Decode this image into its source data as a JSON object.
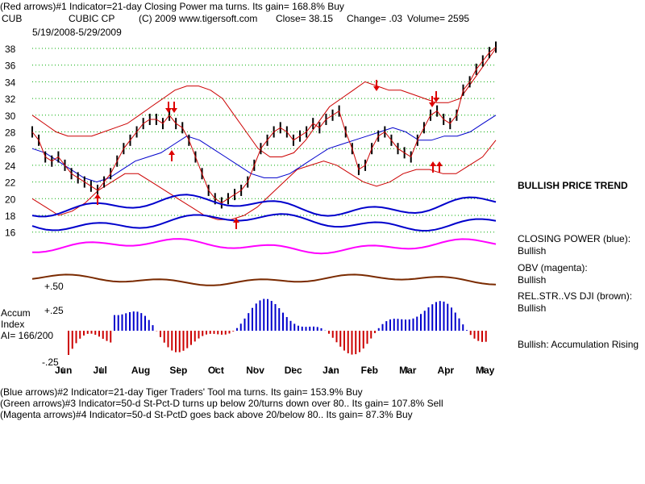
{
  "header": {
    "line1": "(Red arrows)#1 Indicator=21-day Closing Power ma turns. Its gain= 168.8% Buy",
    "ticker": "CUB",
    "company": "CUBIC CP",
    "copyright": "(C) 2009 www.tigersoft.com",
    "close": "Close= 38.15",
    "change": "Change= .03",
    "volume": "Volume= 2595",
    "date_range": "5/19/2008-5/29/2009"
  },
  "right_labels": {
    "price_trend": "BULLISH PRICE TREND",
    "closing_power": "CLOSING POWER (blue):",
    "closing_power_value": "Bullish",
    "obv": "OBV (magenta):",
    "obv_value": "Bullish",
    "rel_str": "REL.STR..VS DJI (brown):",
    "rel_str_value": "Bullish",
    "accum": "Bullish: Accumulation Rising"
  },
  "accum_labels": {
    "title1": "Accum",
    "title2": "Index",
    "ai": "AI= 166/200",
    "plus50": "+.50",
    "plus25": "+.25",
    "minus25": "-.25"
  },
  "footer": {
    "line1": "(Blue arrows)#2 Indicator=21-day Tiger Traders' Tool ma turns. Its gain= 153.9% Buy",
    "line2": "(Green arrows)#3 Indicator=50-d St-Pct-D turns up below 20/turns down over 80.. Its gain= 107.8% Sell",
    "line3": "(Magenta arrows)#4 Indicator=50-d St-PctD goes back above 20/below 80.. Its gain= 87.3% Buy"
  },
  "colors": {
    "price": "#000000",
    "bands": "#cc0000",
    "ma": "#0000cc",
    "closing_power": "#0000cc",
    "obv": "#ff00ff",
    "rel_str": "#7a2a00",
    "accum_pos": "#0000cc",
    "accum_neg": "#cc0000",
    "grid": "#00aa00",
    "arrow": "#dd0000"
  },
  "chart_data": {
    "type": "line",
    "title": "CUBIC CP",
    "y_ticks": [
      16,
      18,
      20,
      22,
      24,
      26,
      28,
      30,
      32,
      34,
      36,
      38
    ],
    "ylim": [
      14,
      40
    ],
    "x_ticks": [
      "Jun",
      "Jul",
      "Aug",
      "Sep",
      "Oct",
      "Nov",
      "Dec",
      "Jan",
      "Feb",
      "Mar",
      "Apr",
      "May"
    ],
    "price_closes": [
      28,
      27,
      25,
      24.5,
      25,
      24,
      23,
      22.5,
      22,
      21.5,
      21,
      22,
      23,
      24.5,
      26,
      27,
      28,
      29,
      29.5,
      29.5,
      29,
      30,
      29,
      28.5,
      27,
      25,
      23,
      21,
      20,
      19.5,
      20,
      20.5,
      21,
      22,
      24,
      26,
      27,
      28,
      28.5,
      28,
      27,
      27.5,
      28,
      29,
      28.5,
      29.5,
      30,
      30.5,
      28,
      26,
      23.5,
      24,
      26,
      27.5,
      28,
      27,
      26,
      25.5,
      25,
      27,
      28.5,
      30,
      30.5,
      29.5,
      29,
      30,
      33,
      34,
      35.5,
      36.5,
      37.5,
      38.15
    ],
    "upper_band": [
      30,
      29,
      28,
      27.5,
      27.5,
      27.5,
      28,
      28.5,
      29,
      30,
      31,
      32,
      33,
      33.5,
      33.5,
      33,
      32,
      30,
      28,
      26,
      25,
      25,
      25.5,
      27,
      29,
      31,
      32,
      33,
      34,
      33.5,
      33,
      33,
      32.5,
      32,
      31.5,
      31.5,
      32,
      34,
      36,
      38
    ],
    "ma": [
      26,
      25.5,
      24.5,
      23.5,
      22.5,
      22,
      22.5,
      23.5,
      24.5,
      25,
      25.5,
      26.5,
      27.5,
      27,
      26,
      25,
      24,
      23,
      22.5,
      22.5,
      23,
      24,
      25,
      26,
      26.5,
      27,
      27.5,
      28,
      28.5,
      28,
      27,
      27,
      27.5,
      27.5,
      28,
      29,
      30
    ],
    "lower_band": [
      20,
      19,
      18,
      18.5,
      19.5,
      21,
      22,
      23,
      23,
      22,
      21,
      20,
      19,
      18,
      17.5,
      17.5,
      18,
      19,
      20.5,
      22,
      23.5,
      24,
      24.5,
      24,
      23,
      22,
      21.5,
      22,
      23,
      23.5,
      23.5,
      23,
      23,
      24,
      25,
      27
    ],
    "red_arrows_up": [
      "Jul",
      "Sep",
      "Oct",
      "Apr",
      "Apr"
    ],
    "red_arrows_down": [
      "Aug",
      "Aug",
      "Feb",
      "Mar",
      "Apr"
    ],
    "accum_index_range": [
      -0.25,
      0.5
    ]
  }
}
